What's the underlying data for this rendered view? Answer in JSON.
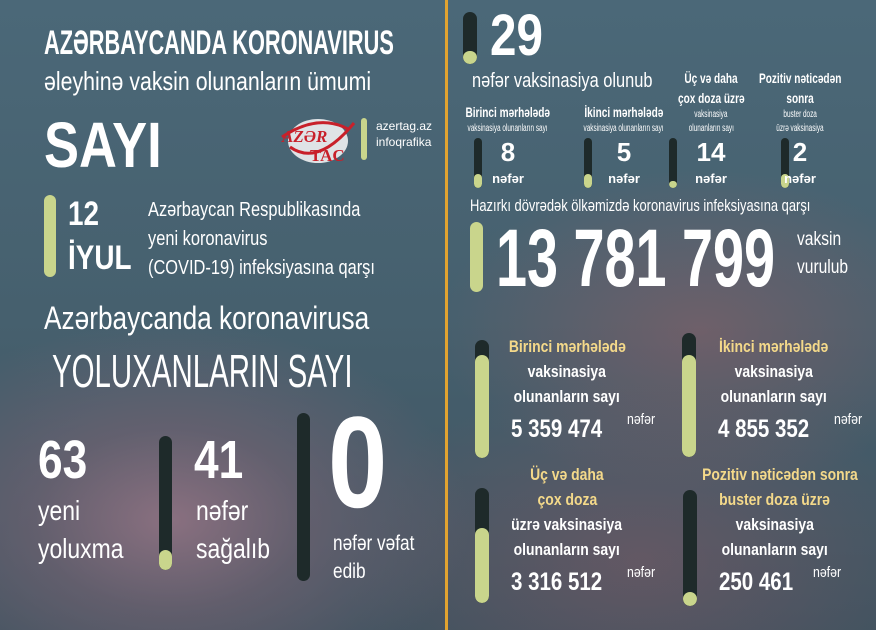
{
  "colors": {
    "accent": "#c9d58c",
    "track": "#1e2a2a",
    "divider": "#e2a330",
    "logo_red": "#c8202a"
  },
  "header": {
    "line1": "AZƏRBAYCANDA KORONAVIRUS",
    "line2": "əleyhinə vaksin olunanların ümumi",
    "line3": "SAYI"
  },
  "logo": {
    "text_top": "AZƏR",
    "text_bottom": "TAC",
    "site": "azertag.az",
    "label": "infoqrafika"
  },
  "date": {
    "day": "12",
    "month": "İYUL"
  },
  "intro": [
    "Azərbaycan Respublikasında",
    "yeni koronavirus",
    "(COVID-19) infeksiyasına qarşı"
  ],
  "cases": {
    "title1": "Azərbaycanda koronavirusa",
    "title2": "YOLUXANLARIN SAYI",
    "new": {
      "value": "63",
      "l1": "yeni",
      "l2": "yoluxma",
      "fill": 0.15
    },
    "recovered": {
      "value": "41",
      "l1": "nəfər",
      "l2": "sağalıb",
      "fill": 0.08
    },
    "deaths": {
      "value": "0",
      "l1": "nəfər vəfat",
      "l2": "edib",
      "fill": 0
    }
  },
  "daily": {
    "value": "29",
    "label": "nəfər vaksinasiya olunub",
    "fill": 0.25,
    "items": [
      {
        "t1": "Birinci mərhələdə",
        "t2": "vaksinasiya olunanların sayı",
        "value": "8",
        "unit": "nəfər",
        "fill": 0.12
      },
      {
        "t1": "İkinci mərhələdə",
        "t2": "vaksinasiya olunanların sayı",
        "value": "5",
        "unit": "nəfər",
        "fill": 0.1
      },
      {
        "t1": "Üç və daha",
        "t1b": "çox doza üzrə",
        "t2": "vaksinasiya",
        "t2b": "olunanların sayı",
        "value": "14",
        "unit": "nəfər",
        "fill": 0.15
      },
      {
        "t1": "Pozitiv nəticədən",
        "t1b": "sonra",
        "t2": "buster doza",
        "t2b": "üzrə vaksinasiya",
        "value": "2",
        "unit": "nəfər",
        "fill": 0.1
      }
    ]
  },
  "total": {
    "label": "Hazırkı dövrədək ölkəmizdə koronavirus infeksiyasına qarşı",
    "value": "13 781 799",
    "u1": "vaksin",
    "u2": "vurulub",
    "fill": 1
  },
  "stages": [
    {
      "l1": "Birinci mərhələdə",
      "l2": "vaksinasiya",
      "l3": "olunanların sayı",
      "value": "5 359 474",
      "unit": "nəfər",
      "fill": 0.87
    },
    {
      "l1": "İkinci mərhələdə",
      "l2": "vaksinasiya",
      "l3": "olunanların sayı",
      "value": "4 855 352",
      "unit": "nəfər",
      "fill": 0.82
    },
    {
      "l1": "Üç və daha",
      "l1b": "çox doza",
      "l2": "üzrə vaksinasiya",
      "l3": "olunanların sayı",
      "value": "3 316 512",
      "unit": "nəfər",
      "fill": 0.65
    },
    {
      "l1": "Pozitiv nəticədən sonra",
      "l1b": "buster doza üzrə",
      "l2": "vaksinasiya",
      "l3": "olunanların sayı",
      "value": "250 461",
      "unit": "nəfər",
      "fill": 0.06
    }
  ]
}
